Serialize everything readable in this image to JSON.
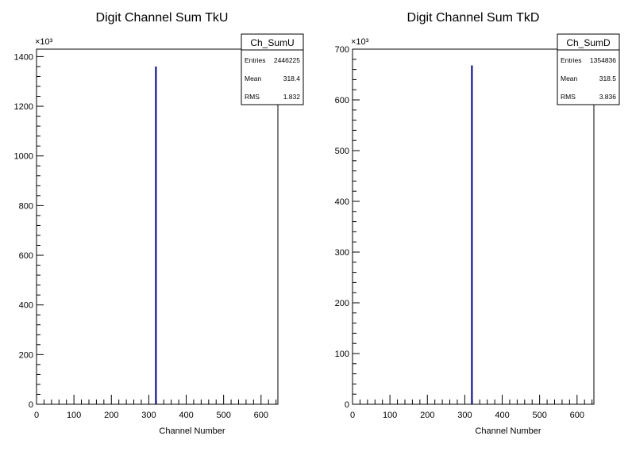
{
  "chart_data": [
    {
      "type": "bar",
      "title": "Digit Channel Sum TkU",
      "xlabel": "Channel Number",
      "ylabel": "",
      "y_multiplier": "×10³",
      "xlim": [
        0,
        645
      ],
      "ylim": [
        0,
        1430
      ],
      "x_ticks": [
        "0",
        "100",
        "200",
        "300",
        "400",
        "500",
        "600"
      ],
      "y_ticks": [
        "0",
        "200",
        "400",
        "600",
        "800",
        "1000",
        "1200",
        "1400"
      ],
      "x": [
        318
      ],
      "values": [
        1360
      ],
      "line_color": "#000080",
      "stats": {
        "name": "Ch_SumU",
        "rows": [
          {
            "label": "Entries",
            "value": "2446225"
          },
          {
            "label": "Mean",
            "value": "318.4"
          },
          {
            "label": "RMS",
            "value": "1.832"
          }
        ]
      }
    },
    {
      "type": "bar",
      "title": "Digit Channel Sum TkD",
      "xlabel": "Channel Number",
      "ylabel": "",
      "y_multiplier": "×10³",
      "xlim": [
        0,
        645
      ],
      "ylim": [
        0,
        700
      ],
      "x_ticks": [
        "0",
        "100",
        "200",
        "300",
        "400",
        "500",
        "600"
      ],
      "y_ticks": [
        "0",
        "100",
        "200",
        "300",
        "400",
        "500",
        "600",
        "700"
      ],
      "x": [
        318
      ],
      "values": [
        668
      ],
      "line_color": "#000080",
      "stats": {
        "name": "Ch_SumD",
        "rows": [
          {
            "label": "Entries",
            "value": "1354836"
          },
          {
            "label": "Mean",
            "value": "318.5"
          },
          {
            "label": "RMS",
            "value": "3.836"
          }
        ]
      }
    }
  ]
}
